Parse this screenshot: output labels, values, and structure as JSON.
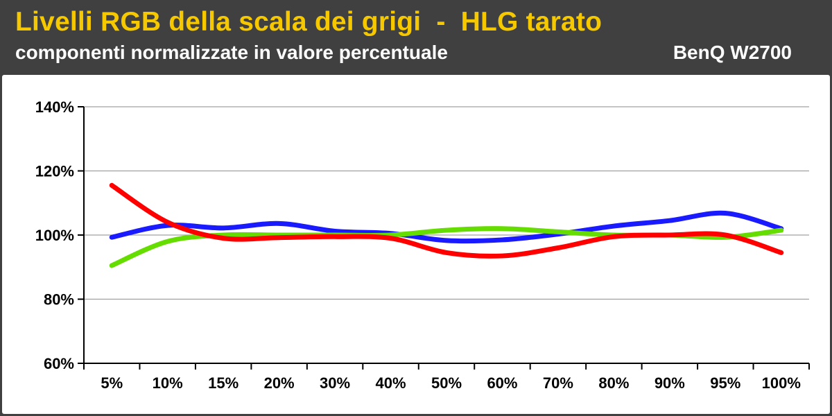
{
  "header": {
    "title": "Livelli RGB della scala dei grigi  -  HLG tarato",
    "subtitle": "componenti normalizzate in valore percentuale",
    "brand": "BenQ W2700"
  },
  "chart_data": {
    "type": "line",
    "categories": [
      "5%",
      "10%",
      "15%",
      "20%",
      "30%",
      "40%",
      "50%",
      "60%",
      "70%",
      "80%",
      "90%",
      "95%",
      "100%"
    ],
    "ylim": [
      60,
      140
    ],
    "yticks": [
      "60%",
      "80%",
      "100%",
      "120%",
      "140%"
    ],
    "grid": true,
    "series": [
      {
        "color": "#1a1aff",
        "values": [
          99.3,
          103,
          102.2,
          103.6,
          101.2,
          100.5,
          98.3,
          98.5,
          100.3,
          102.8,
          104.5,
          106.8,
          102.0
        ]
      },
      {
        "color": "#66dd00",
        "values": [
          90.5,
          98.0,
          100.0,
          100.0,
          100.0,
          100.0,
          101.5,
          102.0,
          101.0,
          100.0,
          100.0,
          99.3,
          101.5
        ]
      },
      {
        "color": "#ff0000",
        "values": [
          115.5,
          104.0,
          99.0,
          99.2,
          99.5,
          99.0,
          94.5,
          93.5,
          96.0,
          99.5,
          100.0,
          100.0,
          94.5
        ]
      }
    ]
  }
}
